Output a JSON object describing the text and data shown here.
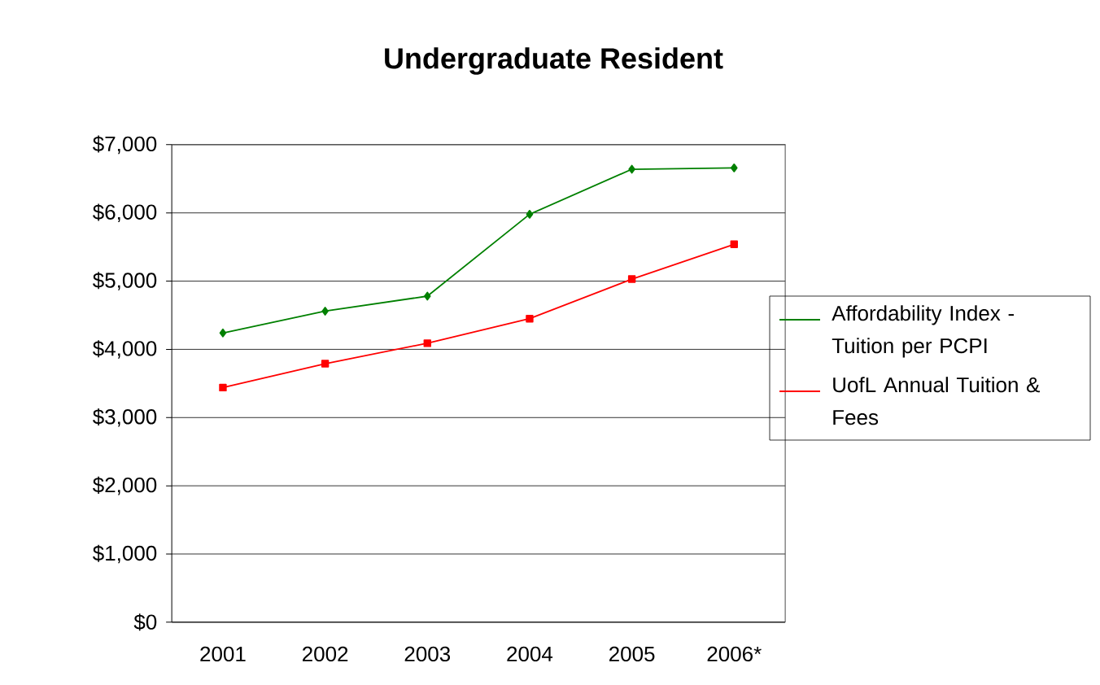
{
  "chart_data": {
    "type": "line",
    "title": "Undergraduate Resident",
    "categories": [
      "2001",
      "2002",
      "2003",
      "2004",
      "2005",
      "2006*"
    ],
    "series": [
      {
        "name": "Affordability Index - Tuition  per PCPI",
        "color": "#008000",
        "marker": "diamond",
        "values": [
          4240,
          4560,
          4780,
          5980,
          6640,
          6660
        ]
      },
      {
        "name": "UofL Annual Tuition & Fees",
        "color": "#ff0000",
        "marker": "square",
        "values": [
          3440,
          3790,
          4090,
          4450,
          5030,
          5540
        ]
      }
    ],
    "ylim": [
      0,
      7000
    ],
    "yticks": [
      {
        "value": 0,
        "label": "$0"
      },
      {
        "value": 1000,
        "label": "$1,000"
      },
      {
        "value": 2000,
        "label": "$2,000"
      },
      {
        "value": 3000,
        "label": "$3,000"
      },
      {
        "value": 4000,
        "label": "$4,000"
      },
      {
        "value": 5000,
        "label": "$5,000"
      },
      {
        "value": 6000,
        "label": "$6,000"
      },
      {
        "value": 7000,
        "label": "$7,000"
      }
    ],
    "grid": "y",
    "legend": "right",
    "line_style": "solid"
  }
}
